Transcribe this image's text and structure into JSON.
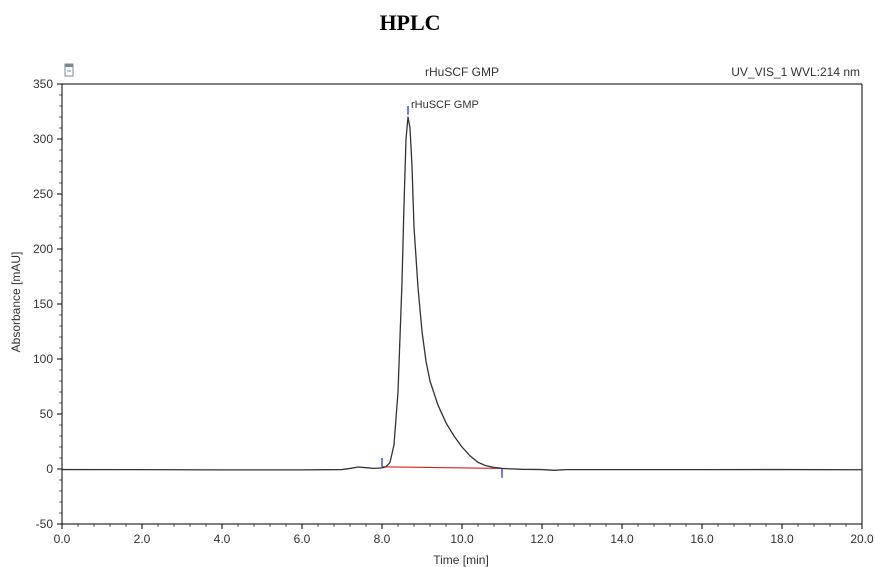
{
  "page": {
    "title": "HPLC"
  },
  "chart_data": {
    "type": "line",
    "title": "rHuSCF GMP",
    "header_right": "UV_VIS_1 WVL:214 nm",
    "xlabel": "Time [min]",
    "ylabel": "Absorbance [mAU]",
    "xlim": [
      0,
      20
    ],
    "ylim": [
      -50,
      350
    ],
    "x_ticks": [
      0,
      2,
      4,
      6,
      8,
      10,
      12,
      14,
      16,
      18,
      20
    ],
    "x_tick_labels": [
      "0.0",
      "2.0",
      "4.0",
      "6.0",
      "8.0",
      "10.0",
      "12.0",
      "14.0",
      "16.0",
      "18.0",
      "20.0"
    ],
    "y_ticks": [
      -50,
      0,
      50,
      100,
      150,
      200,
      250,
      300,
      350
    ],
    "y_tick_labels": [
      "-50",
      "0",
      "50",
      "100",
      "150",
      "200",
      "250",
      "300",
      "350"
    ],
    "grid": false,
    "series": [
      {
        "color": "#333333",
        "points": [
          [
            0,
            -0.5
          ],
          [
            2,
            -0.6
          ],
          [
            4,
            -0.8
          ],
          [
            6,
            -0.8
          ],
          [
            7,
            -0.5
          ],
          [
            7.2,
            0.5
          ],
          [
            7.4,
            1.8
          ],
          [
            7.6,
            1.2
          ],
          [
            7.8,
            0.6
          ],
          [
            8.0,
            1.0
          ],
          [
            8.1,
            2.0
          ],
          [
            8.2,
            6
          ],
          [
            8.3,
            22
          ],
          [
            8.4,
            70
          ],
          [
            8.5,
            170
          ],
          [
            8.55,
            240
          ],
          [
            8.6,
            300
          ],
          [
            8.65,
            320
          ],
          [
            8.7,
            310
          ],
          [
            8.75,
            275
          ],
          [
            8.8,
            220
          ],
          [
            8.9,
            165
          ],
          [
            9.0,
            125
          ],
          [
            9.1,
            98
          ],
          [
            9.2,
            80
          ],
          [
            9.4,
            58
          ],
          [
            9.6,
            42
          ],
          [
            9.8,
            30
          ],
          [
            10.0,
            20
          ],
          [
            10.2,
            12
          ],
          [
            10.4,
            6
          ],
          [
            10.6,
            3
          ],
          [
            10.8,
            1.5
          ],
          [
            11.0,
            0.5
          ],
          [
            11.5,
            -0.3
          ],
          [
            12.0,
            -0.5
          ],
          [
            12.3,
            -1.2
          ],
          [
            12.6,
            -0.6
          ],
          [
            14,
            -0.6
          ],
          [
            16,
            -0.6
          ],
          [
            18,
            -0.5
          ],
          [
            20,
            -0.7
          ]
        ]
      }
    ],
    "baseline": {
      "color": "#e02020",
      "points": [
        [
          8.0,
          2.0
        ],
        [
          11.0,
          0.5
        ]
      ]
    },
    "peak_markers": [
      {
        "x": 8.0,
        "y_from": 2,
        "y_to": 10,
        "color": "#1a1aff"
      },
      {
        "x": 11.0,
        "y_from": 0.5,
        "y_to": -8,
        "color": "#1a1aff"
      },
      {
        "x": 8.65,
        "y_from": 322,
        "y_to": 330,
        "color": "#1a1aff"
      }
    ],
    "annotations": [
      {
        "text": "rHuSCF GMP",
        "x": 8.65,
        "y": 330
      }
    ],
    "colors": {
      "axis": "#000000",
      "trace": "#333333",
      "baseline": "#e02020",
      "markers": "#1a1aff"
    }
  }
}
